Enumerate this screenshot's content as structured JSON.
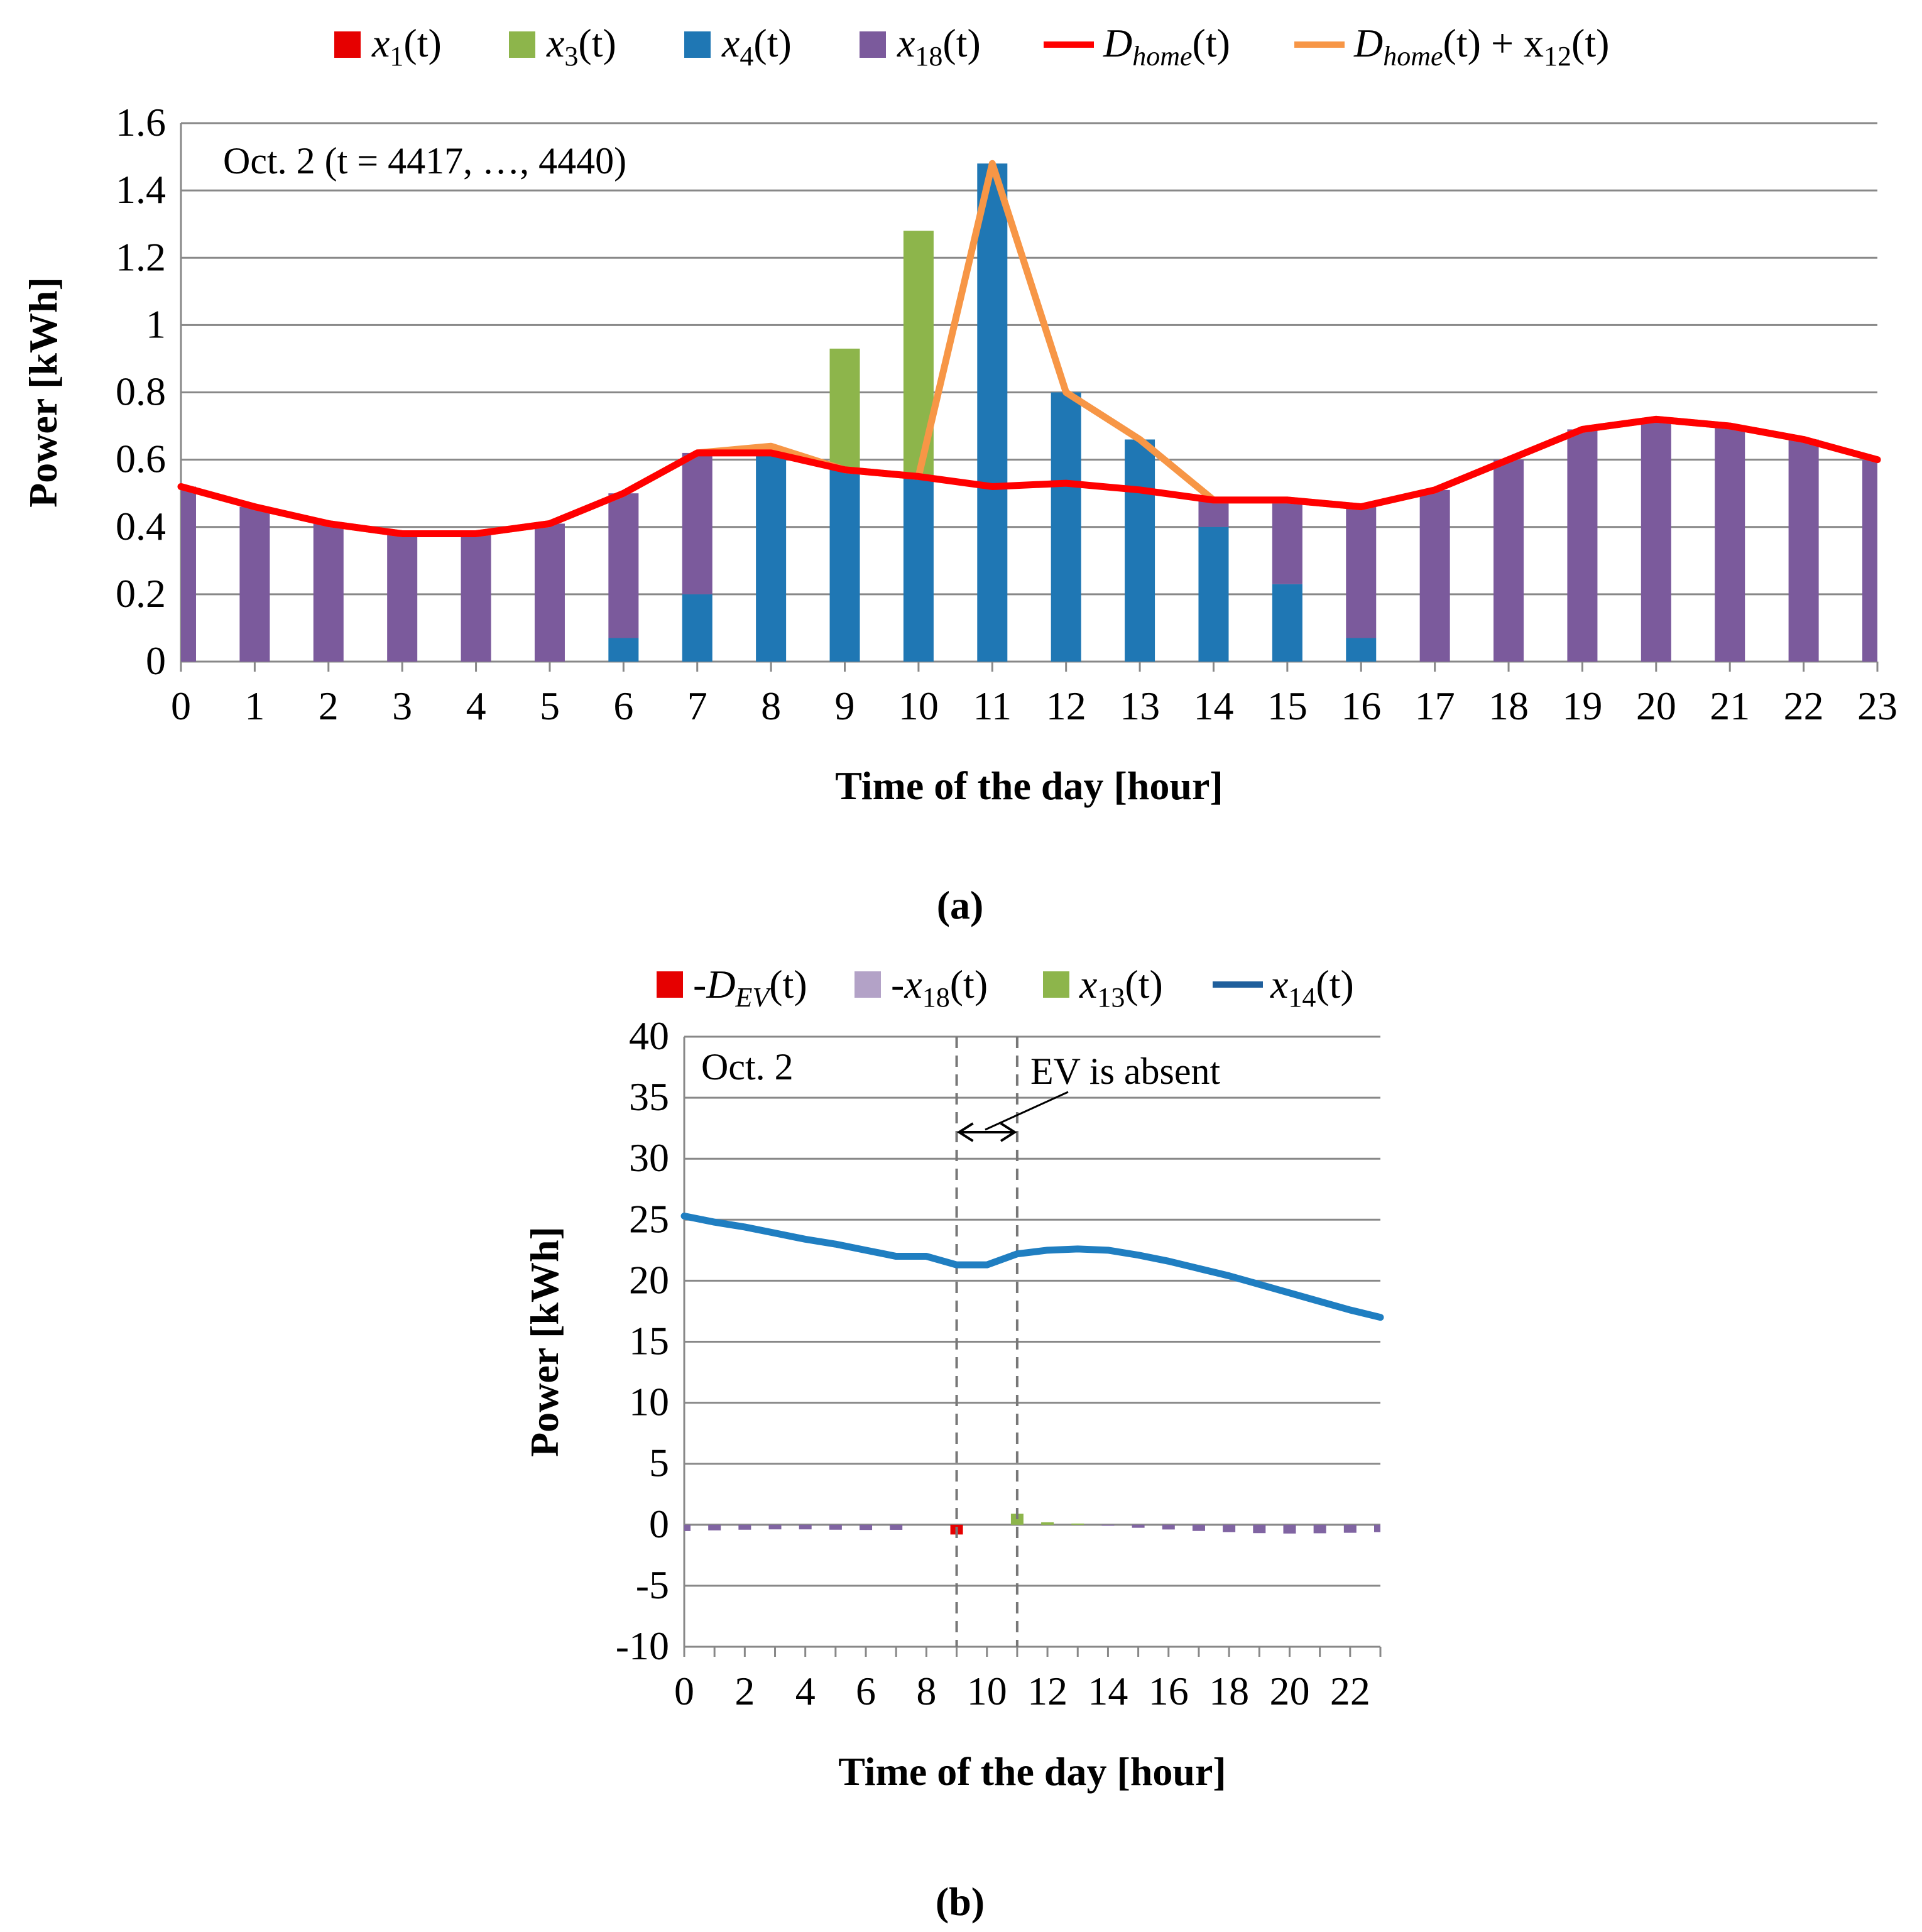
{
  "chart_data": [
    {
      "type": "bar",
      "stacked": true,
      "panel_label": "(a)",
      "annotation": "Oct. 2 (t = 4417, …, 4440)",
      "xlabel": "Time of the day [hour]",
      "ylabel": "Power [kWh]",
      "ylim": [
        0,
        1.6
      ],
      "yticks": [
        "0",
        "0.2",
        "0.4",
        "0.6",
        "0.8",
        "1",
        "1.2",
        "1.4",
        "1.6"
      ],
      "categories": [
        "0",
        "1",
        "2",
        "3",
        "4",
        "5",
        "6",
        "7",
        "8",
        "9",
        "10",
        "11",
        "12",
        "13",
        "14",
        "15",
        "16",
        "17",
        "18",
        "19",
        "20",
        "21",
        "22",
        "23"
      ],
      "legend_position": "top",
      "series": [
        {
          "name": "x1(t)",
          "label_main": "x",
          "label_sub": "1",
          "label_tail": "(t)",
          "color": "#e60000",
          "kind": "bar",
          "values": [
            0,
            0,
            0,
            0,
            0,
            0,
            0,
            0,
            0,
            0,
            0,
            0,
            0,
            0,
            0,
            0,
            0,
            0,
            0,
            0,
            0,
            0,
            0,
            0
          ]
        },
        {
          "name": "x4(t)",
          "label_main": "x",
          "label_sub": "4",
          "label_tail": "(t)",
          "color": "#1f77b4",
          "kind": "bar",
          "values": [
            0,
            0,
            0,
            0,
            0,
            0,
            0.07,
            0.2,
            0.62,
            0.57,
            0.55,
            1.48,
            0.8,
            0.66,
            0.4,
            0.23,
            0.07,
            0,
            0,
            0,
            0,
            0,
            0,
            0
          ]
        },
        {
          "name": "x18(t)",
          "label_main": "x",
          "label_sub": "18",
          "label_tail": "(t)",
          "color": "#7b5a9c",
          "kind": "bar",
          "values": [
            0.52,
            0.46,
            0.41,
            0.38,
            0.38,
            0.41,
            0.43,
            0.42,
            0,
            0,
            0,
            0,
            0,
            0,
            0.08,
            0.25,
            0.39,
            0.51,
            0.6,
            0.69,
            0.72,
            0.7,
            0.66,
            0.6
          ]
        },
        {
          "name": "x3(t)",
          "label_main": "x",
          "label_sub": "3",
          "label_tail": "(t)",
          "color": "#8db54b",
          "kind": "bar",
          "values": [
            0,
            0,
            0,
            0,
            0,
            0,
            0,
            0,
            0,
            0.36,
            0.73,
            0,
            0,
            0,
            0,
            0,
            0,
            0,
            0,
            0,
            0,
            0,
            0,
            0
          ]
        },
        {
          "name": "Dhome(t)",
          "label_main": "D",
          "label_sub": "home",
          "label_tail": "(t)",
          "color": "#ff0000",
          "kind": "line",
          "values": [
            0.52,
            0.46,
            0.41,
            0.38,
            0.38,
            0.41,
            0.5,
            0.62,
            0.62,
            0.57,
            0.55,
            0.52,
            0.53,
            0.51,
            0.48,
            0.48,
            0.46,
            0.51,
            0.6,
            0.69,
            0.72,
            0.7,
            0.66,
            0.6
          ]
        },
        {
          "name": "Dhome(t) + x12(t)",
          "label_main": "D",
          "label_sub": "home",
          "label_tail": "(t) + x",
          "label_sub2": "12",
          "label_tail2": "(t)",
          "color": "#f79646",
          "kind": "line",
          "values": [
            0.52,
            0.46,
            0.41,
            0.38,
            0.38,
            0.41,
            0.5,
            0.62,
            0.64,
            0.57,
            0.55,
            1.48,
            0.8,
            0.66,
            0.48,
            0.48,
            0.46,
            0.51,
            0.6,
            0.69,
            0.72,
            0.7,
            0.66,
            0.6
          ]
        }
      ],
      "legend_order": [
        "x1(t)",
        "x3(t)",
        "x4(t)",
        "x18(t)",
        "Dhome(t)",
        "Dhome(t) + x12(t)"
      ]
    },
    {
      "type": "bar",
      "stacked": true,
      "panel_label": "(b)",
      "annotation": "Oct. 2",
      "annotation2": "EV is absent",
      "xlabel": "Time of the day [hour]",
      "ylabel": "Power [kWh]",
      "ylim": [
        -10,
        40
      ],
      "yticks": [
        "-10",
        "-5",
        "0",
        "5",
        "10",
        "15",
        "20",
        "25",
        "30",
        "35",
        "40"
      ],
      "x": [
        0,
        1,
        2,
        3,
        4,
        5,
        6,
        7,
        8,
        9,
        10,
        11,
        12,
        13,
        14,
        15,
        16,
        17,
        18,
        19,
        20,
        21,
        22,
        23
      ],
      "xtick_labels": [
        "0",
        "2",
        "4",
        "6",
        "8",
        "10",
        "12",
        "14",
        "16",
        "18",
        "20",
        "22"
      ],
      "ev_absent_hours": [
        9,
        11
      ],
      "legend_position": "top",
      "series": [
        {
          "name": "-DEV(t)",
          "label_main": "-D",
          "label_sub": "EV",
          "label_tail": "(t)",
          "color": "#e60000",
          "kind": "bar",
          "values": [
            0,
            0,
            0,
            0,
            0,
            0,
            0,
            0,
            0,
            -0.8,
            0,
            0,
            0,
            0,
            0,
            0,
            0,
            0,
            0,
            0,
            0,
            0,
            0,
            0
          ]
        },
        {
          "name": "-x18(t)",
          "label_main": "-x",
          "label_sub": "18",
          "label_tail": "(t)",
          "color": "#b3a2c7",
          "kind": "bar",
          "values": [
            -0.52,
            -0.46,
            -0.41,
            -0.38,
            -0.38,
            -0.41,
            -0.43,
            -0.42,
            0,
            0,
            0,
            0,
            0,
            0,
            -0.08,
            -0.25,
            -0.39,
            -0.51,
            -0.6,
            -0.69,
            -0.72,
            -0.7,
            -0.66,
            -0.6
          ]
        },
        {
          "name": "x13(t)",
          "label_main": "x",
          "label_sub": "13",
          "label_tail": "(t)",
          "color": "#8db54b",
          "kind": "bar",
          "values": [
            0,
            0,
            0,
            0,
            0,
            0,
            0,
            0,
            0,
            0,
            0,
            0.9,
            0.2,
            0.1,
            0,
            0,
            0,
            0,
            0,
            0,
            0,
            0,
            0,
            0
          ]
        },
        {
          "name": "x14(t)",
          "label_main": "x",
          "label_sub": "14",
          "label_tail": "(t)",
          "color": "#1f7ec1",
          "kind": "line",
          "values": [
            25.3,
            24.8,
            24.4,
            23.9,
            23.4,
            23.0,
            22.5,
            22.0,
            22.0,
            21.3,
            21.3,
            22.2,
            22.5,
            22.6,
            22.5,
            22.1,
            21.6,
            21.0,
            20.4,
            19.7,
            19.0,
            18.3,
            17.6,
            17.0
          ]
        }
      ],
      "legend_order": [
        "-DEV(t)",
        "-x18(t)",
        "x13(t)",
        "x14(t)"
      ]
    }
  ]
}
